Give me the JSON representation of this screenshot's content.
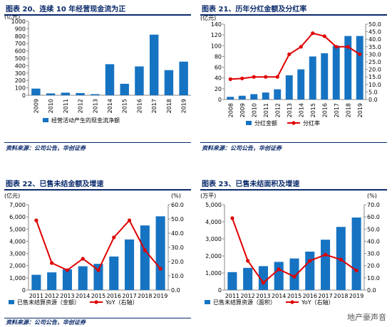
{
  "colors": {
    "bar": "#1673c2",
    "line": "#e00000",
    "title": "#0a2a6b",
    "axis": "#888888"
  },
  "watermark": "地产豪声音",
  "chart_data": [
    {
      "type": "bar",
      "title": "图表 20、连续 10 年经营现金流为正",
      "unit_left": "(亿元)",
      "categories": [
        "2009",
        "2010",
        "2011",
        "2012",
        "2013",
        "2014",
        "2015",
        "2016",
        "2017",
        "2018",
        "2019"
      ],
      "series": [
        {
          "name": "经营活动产生的现金流净额",
          "type": "bar",
          "axis": "left",
          "values": [
            90,
            25,
            35,
            30,
            15,
            420,
            155,
            390,
            820,
            340,
            455
          ]
        }
      ],
      "ylim": [
        0,
        1000
      ],
      "yticks": [
        0,
        100,
        200,
        300,
        400,
        500,
        600,
        700,
        800,
        900,
        1000
      ],
      "source": "资料来源：公司公告，华创证券"
    },
    {
      "type": "bar+line",
      "title": "图表 21、历年分红金额及分红率",
      "unit_left": "(亿元)",
      "categories": [
        "2008",
        "2009",
        "2010",
        "2011",
        "2012",
        "2013",
        "2014",
        "2015",
        "2016",
        "2017",
        "2018",
        "2019"
      ],
      "series": [
        {
          "name": "分红金额",
          "type": "bar",
          "axis": "left",
          "values": [
            5,
            7,
            10,
            13,
            19,
            45,
            56,
            80,
            86,
            100,
            118,
            118
          ]
        },
        {
          "name": "分红率",
          "type": "line",
          "axis": "right",
          "values": [
            13.5,
            14,
            15,
            15,
            15,
            30,
            35,
            44,
            42,
            35,
            35,
            30
          ]
        }
      ],
      "ylim": [
        0,
        140
      ],
      "yticks": [
        0,
        20,
        40,
        60,
        80,
        100,
        120,
        140
      ],
      "y2lim": [
        0,
        50
      ],
      "y2ticks": [
        "0.0",
        "5.0",
        "10.0",
        "15.0",
        "20.0",
        "25.0",
        "30.0",
        "35.0",
        "40.0",
        "45.0",
        "50.0"
      ],
      "unit_right": "",
      "source": "资料来源：公司公告，华创证券"
    },
    {
      "type": "bar+line",
      "title": "图表 22、已售未结金额及增速",
      "unit_left": "(亿元)",
      "unit_right": "(%)",
      "categories": [
        "2011",
        "2012",
        "2013",
        "2014",
        "2015",
        "2016",
        "2017",
        "2018",
        "2019"
      ],
      "series": [
        {
          "name": "已售未结算资源（金额）",
          "type": "bar",
          "axis": "left",
          "values": [
            1250,
            1450,
            1700,
            1950,
            2150,
            2750,
            4150,
            5300,
            6050
          ]
        },
        {
          "name": "YoY（右轴）",
          "type": "line",
          "axis": "right",
          "values": [
            49,
            19,
            14,
            22,
            14,
            37,
            49,
            28,
            15
          ]
        }
      ],
      "ylim": [
        0,
        7000
      ],
      "yticks": [
        "0",
        "1,000",
        "2,000",
        "3,000",
        "4,000",
        "5,000",
        "6,000",
        "7,000"
      ],
      "y2lim": [
        0,
        60
      ],
      "y2ticks": [
        "0.0",
        "10.0",
        "20.0",
        "30.0",
        "40.0",
        "50.0",
        "60.0"
      ],
      "source": "资料来源：公司公告，华创证券"
    },
    {
      "type": "bar+line",
      "title": "图表 23、已售未结面积及增速",
      "unit_left": "(万平)",
      "unit_right": "(%)",
      "categories": [
        "2011",
        "2012",
        "2013",
        "2014",
        "2015",
        "2016",
        "2017",
        "2018",
        "2019"
      ],
      "series": [
        {
          "name": "已售未结算资源（面积）",
          "type": "bar",
          "axis": "left",
          "values": [
            1050,
            1300,
            1400,
            1650,
            1850,
            2250,
            2950,
            3700,
            4250
          ]
        },
        {
          "name": "YoY（右轴）",
          "type": "line",
          "axis": "right",
          "values": [
            59,
            24,
            6,
            17,
            11,
            24,
            29,
            25,
            16
          ]
        }
      ],
      "ylim": [
        0,
        5000
      ],
      "yticks": [
        "0",
        "1,000",
        "2,000",
        "3,000",
        "4,000",
        "5,000"
      ],
      "y2lim": [
        0,
        70
      ],
      "y2ticks": [
        "0.0",
        "10.0",
        "20.0",
        "30.0",
        "40.0",
        "50.0",
        "60.0",
        "70.0"
      ],
      "source": ""
    }
  ]
}
